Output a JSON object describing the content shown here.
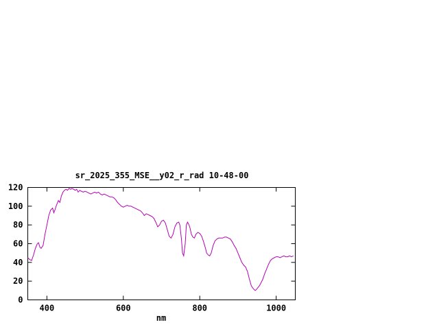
{
  "chart_data": {
    "type": "line",
    "title": "sr_2025_355_MSE__y02_r_rad 10-48-00",
    "xlabel": "nm",
    "ylabel": "",
    "xlim": [
      350,
      1050
    ],
    "ylim": [
      0,
      120
    ],
    "x_ticks": [
      400,
      600,
      800,
      1000
    ],
    "y_ticks": [
      0,
      20,
      40,
      60,
      80,
      100,
      120
    ],
    "grid": false,
    "legend_position": "none",
    "line_color": "#b400b4",
    "series": [
      {
        "name": "sr_2025_355_MSE__y02_r_rad",
        "x": [
          350,
          355,
          360,
          365,
          370,
          375,
          378,
          382,
          385,
          390,
          395,
          400,
          405,
          410,
          415,
          418,
          421,
          425,
          430,
          434,
          438,
          442,
          446,
          450,
          454,
          458,
          462,
          466,
          470,
          474,
          478,
          482,
          486,
          490,
          495,
          500,
          505,
          510,
          515,
          520,
          525,
          530,
          535,
          540,
          545,
          550,
          555,
          560,
          565,
          570,
          575,
          580,
          585,
          590,
          595,
          600,
          605,
          610,
          615,
          620,
          625,
          630,
          635,
          640,
          645,
          650,
          655,
          660,
          665,
          670,
          675,
          680,
          685,
          690,
          695,
          700,
          705,
          710,
          715,
          720,
          725,
          730,
          735,
          740,
          745,
          748,
          752,
          755,
          758,
          762,
          765,
          768,
          772,
          775,
          778,
          782,
          786,
          790,
          795,
          800,
          805,
          810,
          815,
          818,
          822,
          826,
          830,
          835,
          840,
          845,
          850,
          855,
          860,
          865,
          870,
          875,
          880,
          885,
          890,
          895,
          900,
          905,
          910,
          915,
          920,
          925,
          930,
          935,
          940,
          945,
          948,
          952,
          956,
          960,
          965,
          970,
          975,
          980,
          985,
          990,
          995,
          1000,
          1005,
          1010,
          1015,
          1020,
          1025,
          1030,
          1035,
          1040,
          1045
        ],
        "y": [
          45,
          43,
          42,
          48,
          55,
          60,
          61,
          56,
          55,
          58,
          70,
          80,
          90,
          96,
          98,
          93,
          96,
          101,
          106,
          104,
          111,
          115,
          117,
          118,
          117,
          119,
          118,
          119,
          118,
          117,
          118,
          115,
          117,
          116,
          115,
          116,
          115,
          114,
          113,
          114,
          115,
          114,
          115,
          113,
          112,
          113,
          112,
          111,
          110,
          110,
          109,
          107,
          104,
          102,
          100,
          99,
          100,
          101,
          100,
          100,
          99,
          98,
          97,
          96,
          95,
          93,
          90,
          92,
          91,
          90,
          89,
          87,
          83,
          78,
          80,
          84,
          85,
          82,
          75,
          68,
          66,
          70,
          78,
          82,
          83,
          80,
          65,
          50,
          47,
          60,
          80,
          83,
          80,
          76,
          70,
          67,
          66,
          70,
          72,
          71,
          68,
          62,
          55,
          50,
          48,
          47,
          50,
          58,
          63,
          65,
          66,
          66,
          66,
          67,
          67,
          66,
          65,
          62,
          58,
          55,
          50,
          45,
          40,
          37,
          35,
          30,
          22,
          15,
          12,
          10,
          11,
          13,
          15,
          18,
          22,
          28,
          33,
          38,
          42,
          44,
          45,
          46,
          46,
          45,
          46,
          47,
          46,
          46,
          47,
          46,
          47
        ]
      }
    ]
  }
}
